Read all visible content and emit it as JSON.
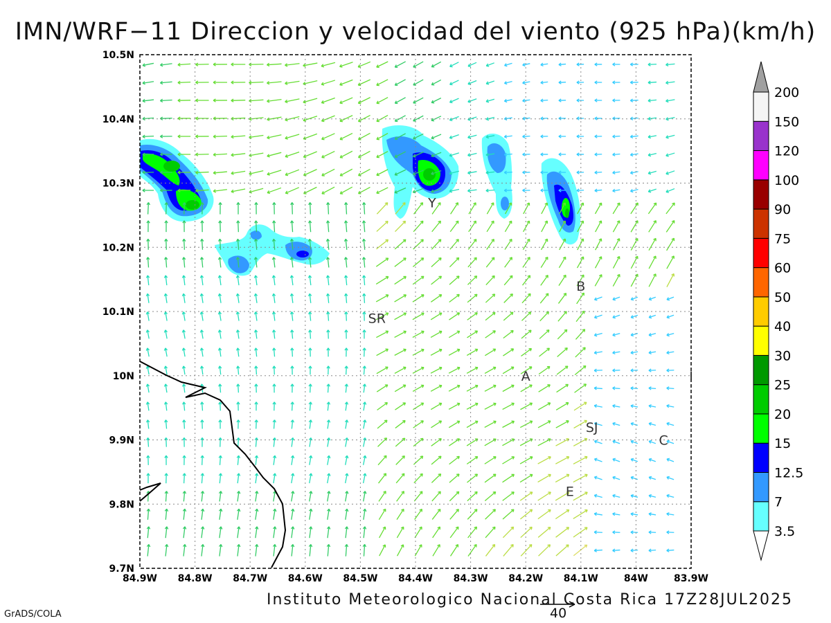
{
  "title": "IMN/WRF−11 Direccion y velocidad del viento (925 hPa)(km/h)",
  "footer": {
    "credit": "Instituto Meteorologico Nacional Costa Rica 17Z28JUL2025",
    "software": "GrADS/COLA",
    "reference_vector_label": "40"
  },
  "axes": {
    "lon_labels": [
      "84.9W",
      "84.8W",
      "84.7W",
      "84.6W",
      "84.5W",
      "84.4W",
      "84.3W",
      "84.2W",
      "84.1W",
      "84W",
      "83.9W"
    ],
    "lat_labels": [
      "10.5N",
      "10.4N",
      "10.3N",
      "10.2N",
      "10.1N",
      "10N",
      "9.9N",
      "9.8N",
      "9.7N"
    ],
    "lon_range": [
      -84.9,
      -83.9
    ],
    "lat_range": [
      9.7,
      10.5
    ],
    "grid": "dotted"
  },
  "colorbar": {
    "levels": [
      "3.5",
      "7",
      "12.5",
      "15",
      "20",
      "25",
      "30",
      "40",
      "50",
      "60",
      "75",
      "90",
      "100",
      "120",
      "150",
      "200"
    ],
    "colors": [
      "#66ffff",
      "#3399ff",
      "#0000ff",
      "#00ff00",
      "#00cc00",
      "#009900",
      "#ffff00",
      "#ffcc00",
      "#ff6600",
      "#ff0000",
      "#cc3300",
      "#990000",
      "#ff00ff",
      "#9933cc",
      "#f5f5f5",
      "#a0a0a0"
    ]
  },
  "places": [
    {
      "label": "SR",
      "lon": -84.47,
      "lat": 10.09
    },
    {
      "label": "Y",
      "lon": -84.37,
      "lat": 10.27
    },
    {
      "label": "B",
      "lon": -84.1,
      "lat": 10.14
    },
    {
      "label": "A",
      "lon": -84.2,
      "lat": 10.0
    },
    {
      "label": "I",
      "lon": -83.9,
      "lat": 10.0
    },
    {
      "label": "SJ",
      "lon": -84.08,
      "lat": 9.92
    },
    {
      "label": "C",
      "lon": -83.95,
      "lat": 9.9
    },
    {
      "label": "E",
      "lon": -84.12,
      "lat": 9.82
    }
  ],
  "colors": {
    "frame": "#000000",
    "grid": "#888888",
    "coast": "#000000"
  }
}
